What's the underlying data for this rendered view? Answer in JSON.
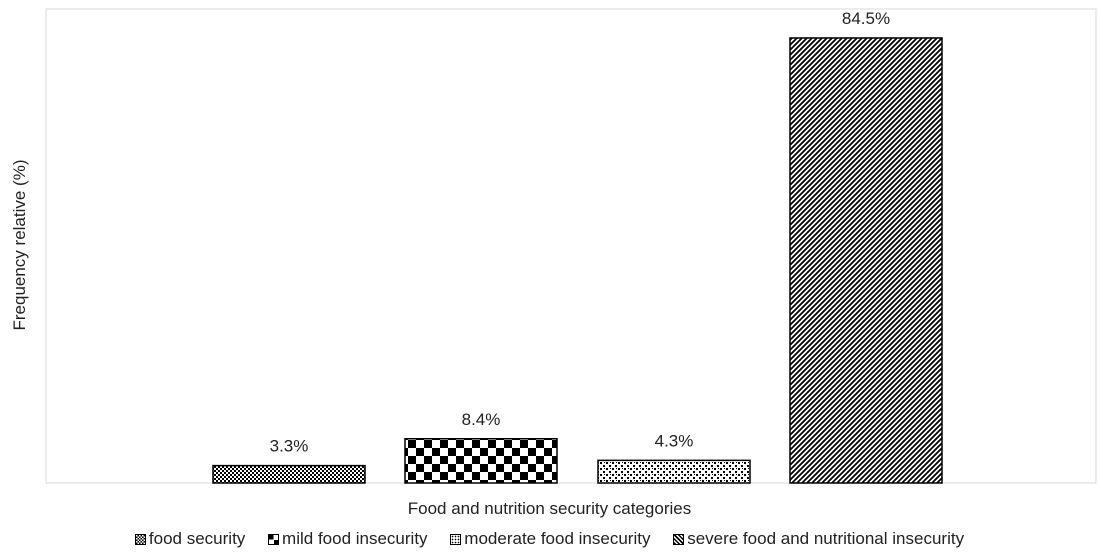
{
  "chart_data": {
    "type": "bar",
    "title": "",
    "xlabel": "Food and nutrition security categories",
    "ylabel": "Frequency relative  (%)",
    "ylim": [
      0,
      90
    ],
    "grid": false,
    "legend_placement": "bottom",
    "series": [
      {
        "name": "food security",
        "values": [
          3.3
        ],
        "label": "3.3%",
        "pattern": "fine-checker"
      },
      {
        "name": "mild food insecurity",
        "values": [
          8.4
        ],
        "label": "8.4%",
        "pattern": "large-checker"
      },
      {
        "name": "moderate food insecurity",
        "values": [
          4.3
        ],
        "label": "4.3%",
        "pattern": "dots"
      },
      {
        "name": "severe food and nutritional insecurity",
        "values": [
          84.5
        ],
        "label": "84.5%",
        "pattern": "diagonal"
      }
    ],
    "colors": {
      "fill": "#000000",
      "background": "#ffffff",
      "axis": "#d9d9d9"
    }
  }
}
